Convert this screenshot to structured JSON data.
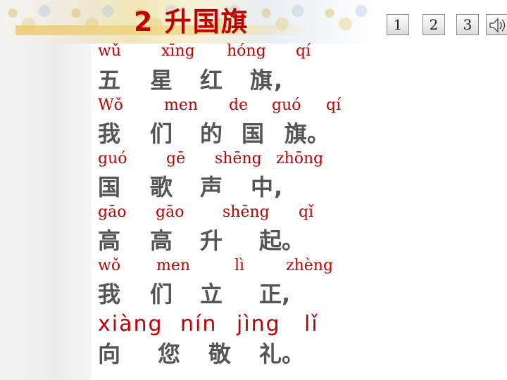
{
  "title": "2 升国旗",
  "nav_buttons": [
    "1",
    "2",
    "3"
  ],
  "speaker_icon": "speaker-icon",
  "lines": [
    {
      "pinyin": [
        "wǔ",
        "xīng",
        "hóng",
        "qí"
      ],
      "hanzi": [
        "五",
        "星",
        "红",
        "旗"
      ],
      "punct": ","
    },
    {
      "pinyin": [
        "Wǒ",
        "men",
        "de",
        "guó",
        "qí"
      ],
      "hanzi": [
        "我",
        "们",
        "的",
        "国",
        "旗"
      ],
      "punct": "。"
    },
    {
      "pinyin": [
        "guó",
        "gē",
        "shēng",
        "zhōng"
      ],
      "hanzi": [
        "国",
        "歌",
        "声",
        "中"
      ],
      "punct": ","
    },
    {
      "pinyin": [
        "gāo",
        "gāo",
        "shēng",
        "qǐ"
      ],
      "hanzi": [
        "高",
        "高",
        "升",
        "起"
      ],
      "punct": "。"
    },
    {
      "pinyin": [
        "wǒ",
        "men",
        "lì",
        "zhèng"
      ],
      "hanzi": [
        "我",
        "们",
        "立",
        "正"
      ],
      "punct": ","
    },
    {
      "pinyin": [
        "xiàng",
        "nín",
        "jìng",
        "lǐ"
      ],
      "hanzi": [
        "向",
        "您",
        "敬",
        "礼"
      ],
      "punct": "。"
    }
  ],
  "colors": {
    "pinyin": "#c00000",
    "hanzi": "#555555",
    "punctuation": "#1f3a8a"
  }
}
